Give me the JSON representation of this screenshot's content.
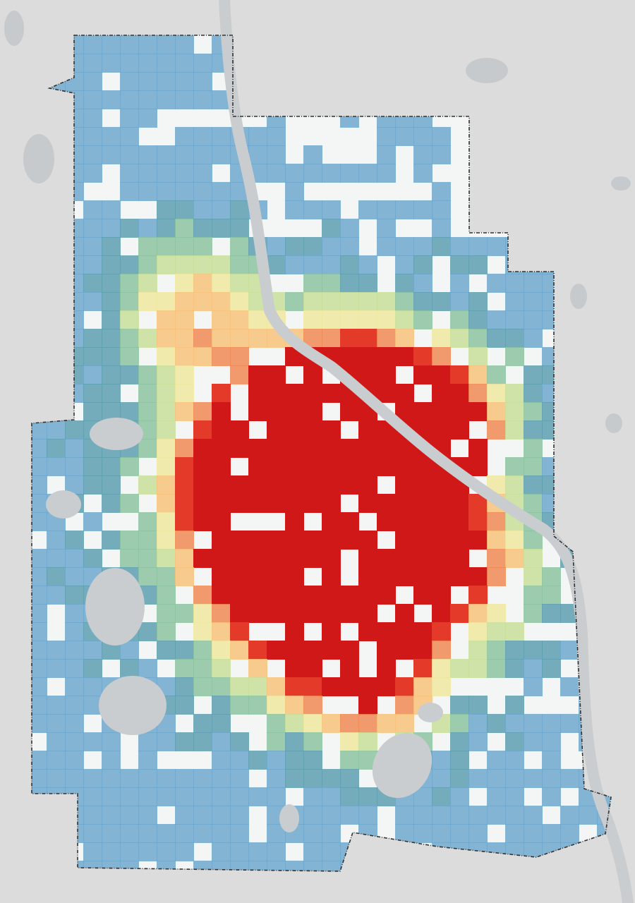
{
  "map": {
    "colors": {
      "background": "#dcdcdc",
      "city_fill": "#f4f5f5",
      "water": "#c9cdd0",
      "boundary": "#333333",
      "scale": [
        "#6fa8cc",
        "#5e9fb0",
        "#8cc3a0",
        "#c8df9a",
        "#f0e8a0",
        "#f7c27a",
        "#f08a55",
        "#e33a2a",
        "#d01818"
      ]
    },
    "layers": [
      "city-boundary",
      "river",
      "lakes",
      "density-heat-tiles"
    ]
  }
}
